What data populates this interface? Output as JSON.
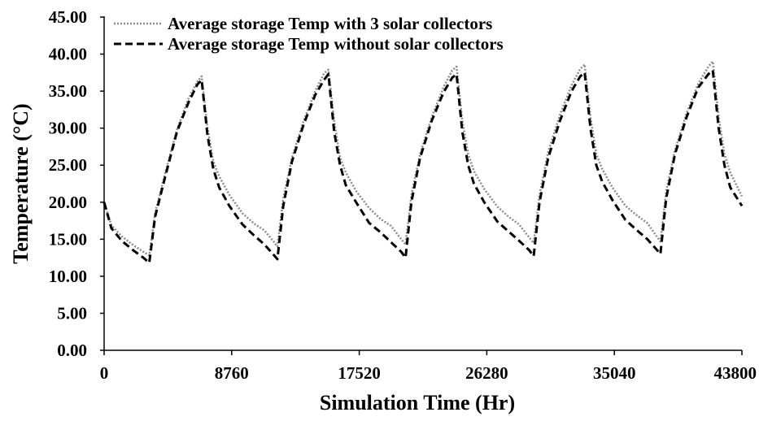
{
  "chart_data": {
    "type": "line",
    "title": "",
    "xlabel": "Simulation Time (Hr)",
    "ylabel": "Temperature (°C)",
    "xlim": [
      0,
      43800
    ],
    "ylim": [
      0,
      45
    ],
    "x_ticks": [
      0,
      8760,
      17520,
      26280,
      35040,
      43800
    ],
    "x_tick_labels": [
      "0",
      "8760",
      "17520",
      "26280",
      "35040",
      "43800"
    ],
    "y_ticks": [
      0,
      5,
      10,
      15,
      20,
      25,
      30,
      35,
      40,
      45
    ],
    "y_tick_labels": [
      "0.00",
      "5.00",
      "10.00",
      "15.00",
      "20.00",
      "25.00",
      "30.00",
      "35.00",
      "40.00",
      "45.00"
    ],
    "grid": false,
    "legend_position": "top-left",
    "series": [
      {
        "name": "Average storage Temp with 3 solar collectors",
        "color": "#8c8c8c",
        "style": "dotted",
        "x": [
          0,
          500,
          1200,
          2000,
          2700,
          3100,
          3500,
          4200,
          5000,
          5800,
          6400,
          6700,
          7100,
          7500,
          7900,
          8600,
          9500,
          10300,
          11000,
          11600,
          11900,
          12300,
          12900,
          13700,
          14500,
          15100,
          15400,
          15800,
          16200,
          16600,
          17300,
          18200,
          19000,
          19700,
          20400,
          20700,
          21100,
          21700,
          22500,
          23300,
          23900,
          24200,
          24600,
          25000,
          25400,
          26100,
          27000,
          27800,
          28500,
          29200,
          29500,
          29900,
          30500,
          31300,
          32100,
          32700,
          33000,
          33400,
          33800,
          34200,
          34900,
          35800,
          36600,
          37300,
          37900,
          38200,
          38600,
          39200,
          40000,
          40800,
          41500,
          41800,
          42200,
          42600,
          43000,
          43800
        ],
        "values": [
          20.0,
          16.9,
          15.4,
          14.2,
          13.3,
          12.8,
          18.5,
          24.0,
          29.8,
          34.0,
          36.3,
          37.0,
          30.0,
          25.5,
          23.5,
          21.0,
          18.5,
          17.1,
          16.2,
          14.8,
          14.0,
          20.5,
          26.0,
          31.0,
          35.0,
          37.4,
          37.9,
          31.0,
          26.0,
          24.0,
          21.5,
          19.2,
          17.7,
          16.8,
          15.0,
          14.3,
          21.0,
          26.5,
          31.5,
          35.5,
          37.8,
          38.3,
          31.0,
          26.5,
          24.2,
          21.8,
          19.4,
          18.0,
          17.0,
          15.2,
          14.5,
          21.0,
          26.8,
          31.8,
          35.8,
          38.0,
          38.6,
          31.5,
          26.5,
          24.5,
          22.0,
          19.5,
          18.2,
          17.2,
          15.5,
          14.7,
          21.5,
          27.0,
          32.0,
          36.0,
          38.3,
          39.0,
          31.5,
          26.5,
          24.0,
          20.8
        ]
      },
      {
        "name": "Average storage Temp without solar collectors",
        "color": "#000000",
        "style": "dashed",
        "x": [
          0,
          500,
          1200,
          2000,
          2700,
          3100,
          3500,
          4200,
          5000,
          5800,
          6400,
          6700,
          7100,
          7500,
          7900,
          8600,
          9500,
          10300,
          11000,
          11600,
          11900,
          12300,
          12900,
          13700,
          14500,
          15100,
          15400,
          15800,
          16200,
          16600,
          17300,
          18200,
          19000,
          19700,
          20400,
          20700,
          21100,
          21700,
          22500,
          23300,
          23900,
          24200,
          24600,
          25000,
          25400,
          26100,
          27000,
          27800,
          28500,
          29200,
          29500,
          29900,
          30500,
          31300,
          32100,
          32700,
          33000,
          33400,
          33800,
          34200,
          34900,
          35800,
          36600,
          37300,
          37900,
          38200,
          38600,
          39200,
          40000,
          40800,
          41500,
          41800,
          42200,
          42600,
          43000,
          43800
        ],
        "values": [
          20.0,
          16.5,
          14.8,
          13.5,
          12.5,
          11.8,
          18.0,
          23.5,
          29.5,
          33.5,
          35.9,
          36.5,
          29.0,
          24.5,
          22.0,
          19.5,
          17.0,
          15.5,
          14.3,
          13.0,
          12.3,
          19.5,
          25.5,
          30.5,
          34.5,
          36.5,
          37.3,
          29.5,
          25.0,
          22.3,
          20.0,
          17.2,
          15.9,
          14.6,
          13.3,
          12.5,
          20.0,
          26.0,
          31.0,
          34.8,
          36.8,
          37.3,
          29.5,
          25.0,
          22.5,
          20.0,
          17.4,
          16.0,
          14.8,
          13.5,
          12.7,
          20.0,
          26.0,
          31.0,
          35.0,
          37.0,
          37.5,
          30.0,
          25.0,
          22.8,
          20.3,
          17.6,
          16.2,
          15.0,
          13.7,
          13.0,
          20.5,
          26.5,
          31.5,
          35.5,
          37.3,
          37.8,
          30.0,
          25.0,
          22.0,
          19.5
        ]
      }
    ]
  }
}
